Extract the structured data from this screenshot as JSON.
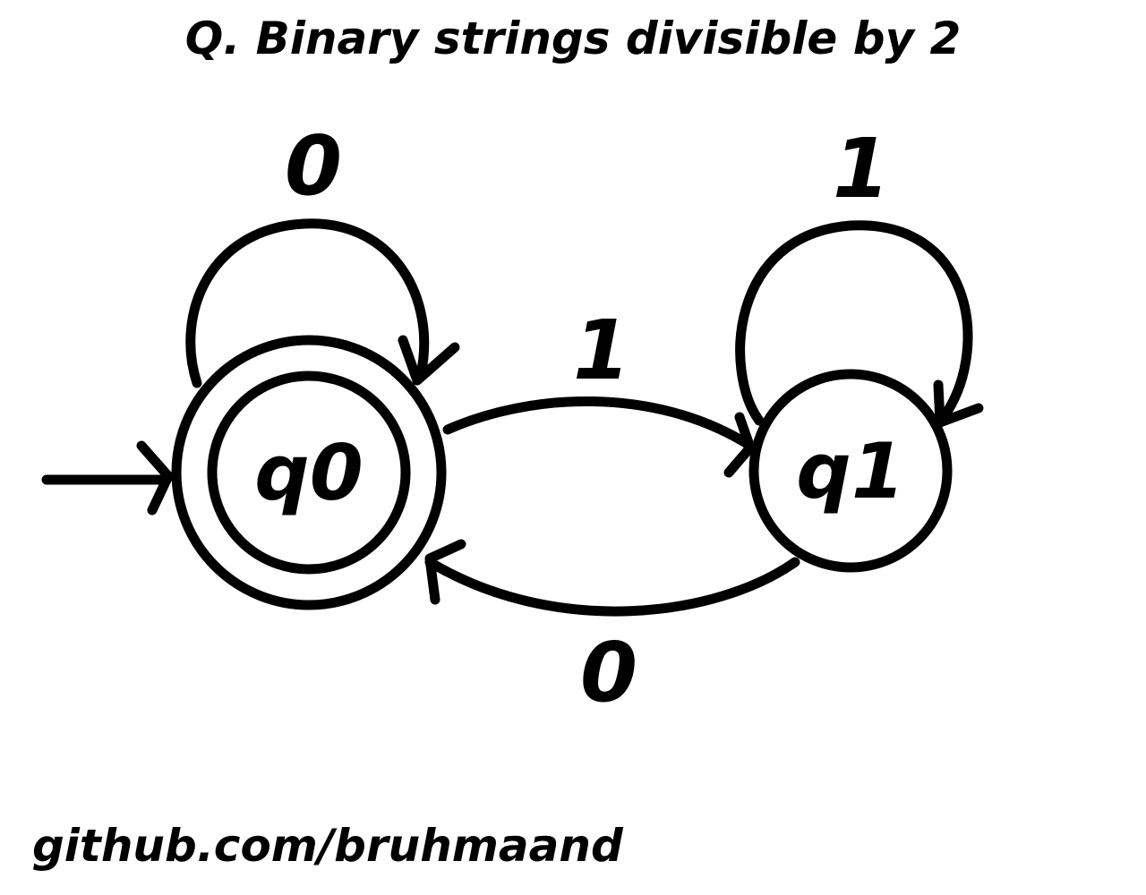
{
  "title": "Q. Binary strings divisible by 2",
  "footer": "github.com/bruhmaand",
  "colors": {
    "ink": "#000000",
    "background": "#ffffff"
  },
  "states": [
    {
      "id": "q0",
      "label": "q0",
      "initial": true,
      "accepting": true
    },
    {
      "id": "q1",
      "label": "q1",
      "initial": false,
      "accepting": false
    }
  ],
  "transitions": [
    {
      "from": "q0",
      "to": "q0",
      "symbol": "0"
    },
    {
      "from": "q1",
      "to": "q1",
      "symbol": "1"
    },
    {
      "from": "q0",
      "to": "q1",
      "symbol": "1"
    },
    {
      "from": "q1",
      "to": "q0",
      "symbol": "0"
    }
  ]
}
